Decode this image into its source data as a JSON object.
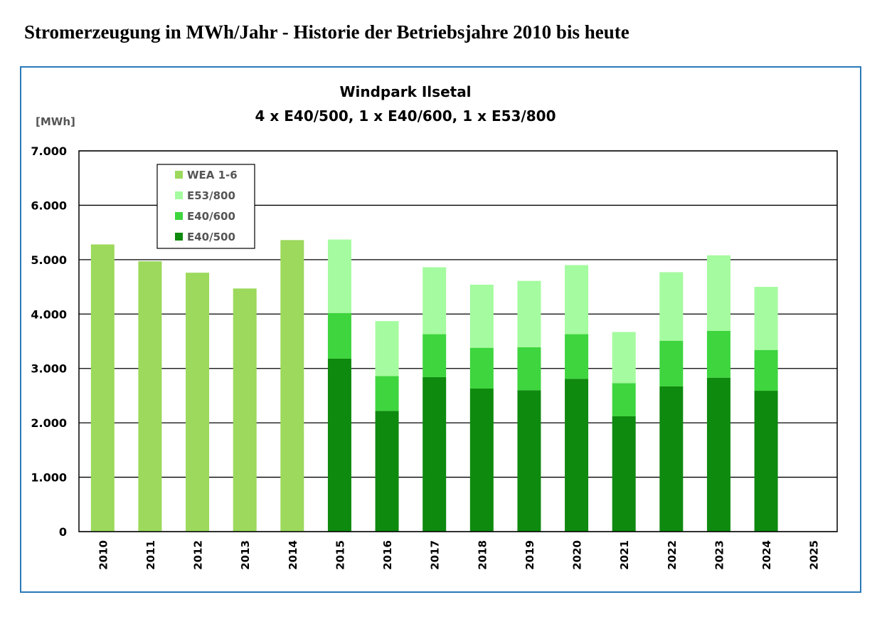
{
  "page_title": "Stromerzeugung in MWh/Jahr - Historie der Betriebsjahre 2010 bis heute",
  "chart_data": {
    "type": "bar",
    "stacked": true,
    "title": "Windpark Ilsetal",
    "subtitle": "4 x E40/500, 1 x E40/600, 1 x E53/800",
    "ylabel": "[MWh]",
    "xlabel": "",
    "ylim": [
      0,
      7000
    ],
    "yticks": [
      "0",
      "1.000",
      "2.000",
      "3.000",
      "4.000",
      "5.000",
      "6.000",
      "7.000"
    ],
    "grid": true,
    "legend_position": "top-left",
    "categories": [
      "2010",
      "2011",
      "2012",
      "2013",
      "2014",
      "2015",
      "2016",
      "2017",
      "2018",
      "2019",
      "2020",
      "2021",
      "2022",
      "2023",
      "2024",
      "2025"
    ],
    "series": [
      {
        "name": "E40/500",
        "color": "#0e8a0e",
        "values": [
          0,
          0,
          0,
          0,
          0,
          3180,
          2220,
          2840,
          2630,
          2600,
          2810,
          2120,
          2670,
          2830,
          2590,
          0
        ]
      },
      {
        "name": "E40/600",
        "color": "#3ed53e",
        "values": [
          0,
          0,
          0,
          0,
          0,
          840,
          640,
          790,
          750,
          790,
          820,
          610,
          840,
          860,
          750,
          0
        ]
      },
      {
        "name": "E53/800",
        "color": "#a5fb9f",
        "values": [
          0,
          0,
          0,
          0,
          0,
          1350,
          1010,
          1230,
          1160,
          1220,
          1270,
          940,
          1260,
          1390,
          1160,
          0
        ]
      },
      {
        "name": "WEA 1-6",
        "color": "#9cd95c",
        "values": [
          5280,
          4970,
          4760,
          4470,
          5360,
          0,
          0,
          0,
          0,
          0,
          0,
          0,
          0,
          0,
          0,
          0
        ]
      }
    ],
    "legend_order": [
      "WEA 1-6",
      "E53/800",
      "E40/600",
      "E40/500"
    ]
  }
}
